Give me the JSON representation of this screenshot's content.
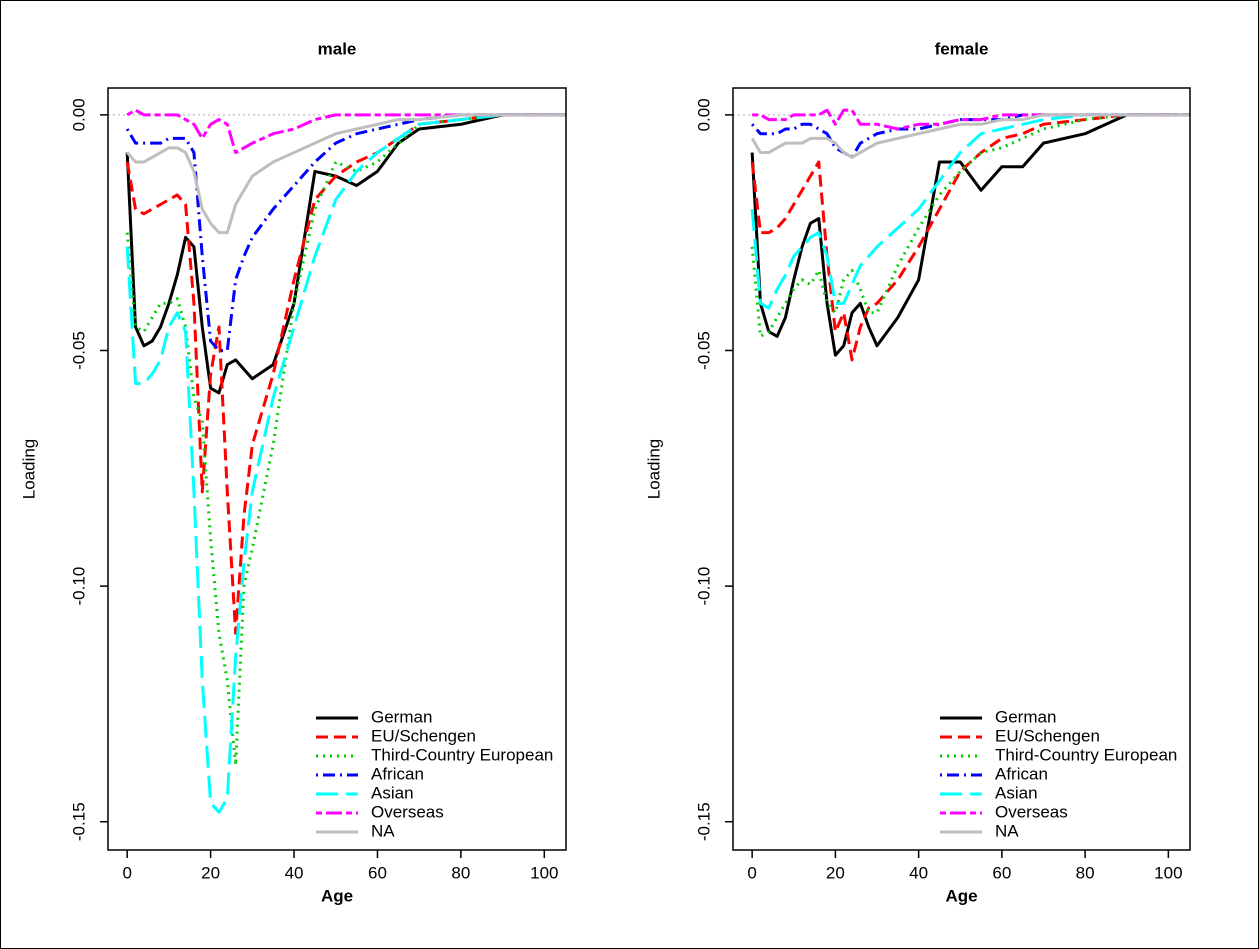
{
  "chart_data": [
    {
      "type": "line",
      "title": "male",
      "xlabel": "Age",
      "ylabel": "Loading",
      "x": [
        0,
        2,
        4,
        6,
        8,
        10,
        12,
        14,
        16,
        18,
        20,
        22,
        24,
        26,
        28,
        30,
        35,
        40,
        45,
        50,
        55,
        60,
        65,
        70,
        80,
        90,
        105
      ],
      "xlim": [
        -4.6,
        105.2
      ],
      "ylim": [
        -0.156,
        0.0057
      ],
      "xticks": [
        0,
        20,
        40,
        60,
        80,
        100
      ],
      "yticks": [
        {
          "value": 0,
          "label": "0.00"
        },
        {
          "value": -0.05,
          "label": "-0.05"
        },
        {
          "value": -0.1,
          "label": "-0.10"
        },
        {
          "value": -0.15,
          "label": "-0.15"
        }
      ],
      "hline": 0,
      "legend": "bottomright",
      "series": [
        {
          "name": "German",
          "color": "#000000",
          "linestyle": "solid",
          "values": [
            -0.008,
            -0.045,
            -0.049,
            -0.048,
            -0.045,
            -0.04,
            -0.034,
            -0.026,
            -0.028,
            -0.045,
            -0.058,
            -0.059,
            -0.053,
            -0.052,
            -0.054,
            -0.056,
            -0.053,
            -0.04,
            -0.012,
            -0.013,
            -0.015,
            -0.012,
            -0.006,
            -0.003,
            -0.002,
            0,
            0
          ]
        },
        {
          "name": "EU/Schengen",
          "color": "#ff0000",
          "linestyle": "dashed",
          "values": [
            -0.01,
            -0.02,
            -0.021,
            -0.02,
            -0.019,
            -0.018,
            -0.017,
            -0.019,
            -0.04,
            -0.08,
            -0.055,
            -0.045,
            -0.08,
            -0.11,
            -0.085,
            -0.07,
            -0.055,
            -0.035,
            -0.018,
            -0.013,
            -0.01,
            -0.008,
            -0.005,
            -0.002,
            -0.001,
            0,
            0
          ]
        },
        {
          "name": "Third-Country European",
          "color": "#00cc00",
          "linestyle": "dotted",
          "values": [
            -0.025,
            -0.045,
            -0.046,
            -0.043,
            -0.04,
            -0.04,
            -0.039,
            -0.045,
            -0.06,
            -0.065,
            -0.09,
            -0.11,
            -0.12,
            -0.138,
            -0.1,
            -0.092,
            -0.07,
            -0.04,
            -0.02,
            -0.01,
            -0.012,
            -0.01,
            -0.006,
            -0.002,
            -0.001,
            0,
            0
          ]
        },
        {
          "name": "African",
          "color": "#0000ff",
          "linestyle": "dotdash",
          "values": [
            -0.003,
            -0.006,
            -0.006,
            -0.006,
            -0.006,
            -0.005,
            -0.005,
            -0.005,
            -0.008,
            -0.03,
            -0.048,
            -0.05,
            -0.05,
            -0.035,
            -0.03,
            -0.026,
            -0.02,
            -0.015,
            -0.01,
            -0.006,
            -0.004,
            -0.003,
            -0.002,
            -0.001,
            0,
            0,
            0
          ]
        },
        {
          "name": "Asian",
          "color": "#00ffff",
          "linestyle": "longdash",
          "values": [
            -0.028,
            -0.057,
            -0.057,
            -0.055,
            -0.052,
            -0.045,
            -0.042,
            -0.046,
            -0.08,
            -0.12,
            -0.146,
            -0.148,
            -0.145,
            -0.115,
            -0.095,
            -0.08,
            -0.06,
            -0.045,
            -0.03,
            -0.018,
            -0.012,
            -0.008,
            -0.005,
            -0.002,
            -0.001,
            0,
            0
          ]
        },
        {
          "name": "Overseas",
          "color": "#ff00ff",
          "linestyle": "twodash",
          "values": [
            0,
            0.001,
            0,
            0,
            0,
            0,
            0,
            -0.001,
            -0.002,
            -0.005,
            -0.002,
            -0.001,
            -0.002,
            -0.008,
            -0.007,
            -0.006,
            -0.004,
            -0.003,
            -0.001,
            0,
            0,
            0,
            0,
            0,
            0,
            0,
            0
          ]
        },
        {
          "name": "NA",
          "color": "#bebebe",
          "linestyle": "solid",
          "values": [
            -0.008,
            -0.01,
            -0.01,
            -0.009,
            -0.008,
            -0.007,
            -0.007,
            -0.008,
            -0.012,
            -0.02,
            -0.023,
            -0.025,
            -0.025,
            -0.019,
            -0.016,
            -0.013,
            -0.01,
            -0.008,
            -0.006,
            -0.004,
            -0.003,
            -0.002,
            -0.001,
            -0.001,
            0,
            0,
            0
          ]
        }
      ]
    },
    {
      "type": "line",
      "title": "female",
      "xlabel": "Age",
      "ylabel": "Loading",
      "x": [
        0,
        2,
        4,
        6,
        8,
        10,
        12,
        14,
        16,
        18,
        20,
        22,
        24,
        26,
        28,
        30,
        35,
        40,
        45,
        50,
        55,
        60,
        65,
        70,
        80,
        90,
        105
      ],
      "xlim": [
        -4.6,
        105.2
      ],
      "ylim": [
        -0.156,
        0.0057
      ],
      "xticks": [
        0,
        20,
        40,
        60,
        80,
        100
      ],
      "yticks": [
        {
          "value": 0,
          "label": "0.00"
        },
        {
          "value": -0.05,
          "label": "-0.05"
        },
        {
          "value": -0.1,
          "label": "-0.10"
        },
        {
          "value": -0.15,
          "label": "-0.15"
        }
      ],
      "hline": 0,
      "legend": "bottomright",
      "series": [
        {
          "name": "German",
          "color": "#000000",
          "linestyle": "solid",
          "values": [
            -0.008,
            -0.04,
            -0.046,
            -0.047,
            -0.043,
            -0.035,
            -0.028,
            -0.023,
            -0.022,
            -0.04,
            -0.051,
            -0.049,
            -0.042,
            -0.04,
            -0.045,
            -0.049,
            -0.043,
            -0.035,
            -0.01,
            -0.01,
            -0.016,
            -0.011,
            -0.011,
            -0.006,
            -0.004,
            0,
            0
          ]
        },
        {
          "name": "EU/Schengen",
          "color": "#ff0000",
          "linestyle": "dashed",
          "values": [
            -0.01,
            -0.025,
            -0.025,
            -0.024,
            -0.022,
            -0.019,
            -0.016,
            -0.013,
            -0.01,
            -0.03,
            -0.046,
            -0.042,
            -0.052,
            -0.045,
            -0.041,
            -0.04,
            -0.035,
            -0.028,
            -0.02,
            -0.012,
            -0.008,
            -0.005,
            -0.004,
            -0.002,
            -0.001,
            0,
            0
          ]
        },
        {
          "name": "Third-Country European",
          "color": "#00cc00",
          "linestyle": "dotted",
          "values": [
            -0.028,
            -0.047,
            -0.046,
            -0.043,
            -0.04,
            -0.037,
            -0.035,
            -0.036,
            -0.033,
            -0.04,
            -0.042,
            -0.035,
            -0.033,
            -0.037,
            -0.042,
            -0.042,
            -0.032,
            -0.024,
            -0.017,
            -0.012,
            -0.008,
            -0.007,
            -0.005,
            -0.003,
            -0.001,
            0,
            0
          ]
        },
        {
          "name": "African",
          "color": "#0000ff",
          "linestyle": "dotdash",
          "values": [
            -0.002,
            -0.004,
            -0.004,
            -0.004,
            -0.003,
            -0.003,
            -0.002,
            -0.002,
            -0.003,
            -0.004,
            -0.007,
            -0.008,
            -0.009,
            -0.006,
            -0.005,
            -0.004,
            -0.003,
            -0.003,
            -0.002,
            -0.001,
            -0.001,
            -0.001,
            0,
            0,
            0,
            0,
            0
          ]
        },
        {
          "name": "Asian",
          "color": "#00ffff",
          "linestyle": "longdash",
          "values": [
            -0.02,
            -0.04,
            -0.041,
            -0.037,
            -0.034,
            -0.03,
            -0.028,
            -0.026,
            -0.025,
            -0.03,
            -0.04,
            -0.04,
            -0.036,
            -0.032,
            -0.03,
            -0.028,
            -0.024,
            -0.02,
            -0.014,
            -0.008,
            -0.004,
            -0.003,
            -0.002,
            -0.001,
            0,
            0,
            0
          ]
        },
        {
          "name": "Overseas",
          "color": "#ff00ff",
          "linestyle": "twodash",
          "values": [
            0,
            0,
            -0.001,
            -0.001,
            -0.001,
            0,
            0,
            0,
            0,
            0.001,
            -0.002,
            0.001,
            0.001,
            -0.002,
            -0.002,
            -0.002,
            -0.003,
            -0.002,
            -0.002,
            -0.001,
            -0.001,
            0,
            0,
            0,
            0,
            0,
            0
          ]
        },
        {
          "name": "NA",
          "color": "#bebebe",
          "linestyle": "solid",
          "values": [
            -0.005,
            -0.008,
            -0.008,
            -0.007,
            -0.006,
            -0.006,
            -0.006,
            -0.005,
            -0.005,
            -0.005,
            -0.006,
            -0.008,
            -0.009,
            -0.008,
            -0.007,
            -0.006,
            -0.005,
            -0.004,
            -0.003,
            -0.002,
            -0.002,
            -0.001,
            -0.001,
            0,
            0,
            0,
            0
          ]
        }
      ]
    }
  ]
}
